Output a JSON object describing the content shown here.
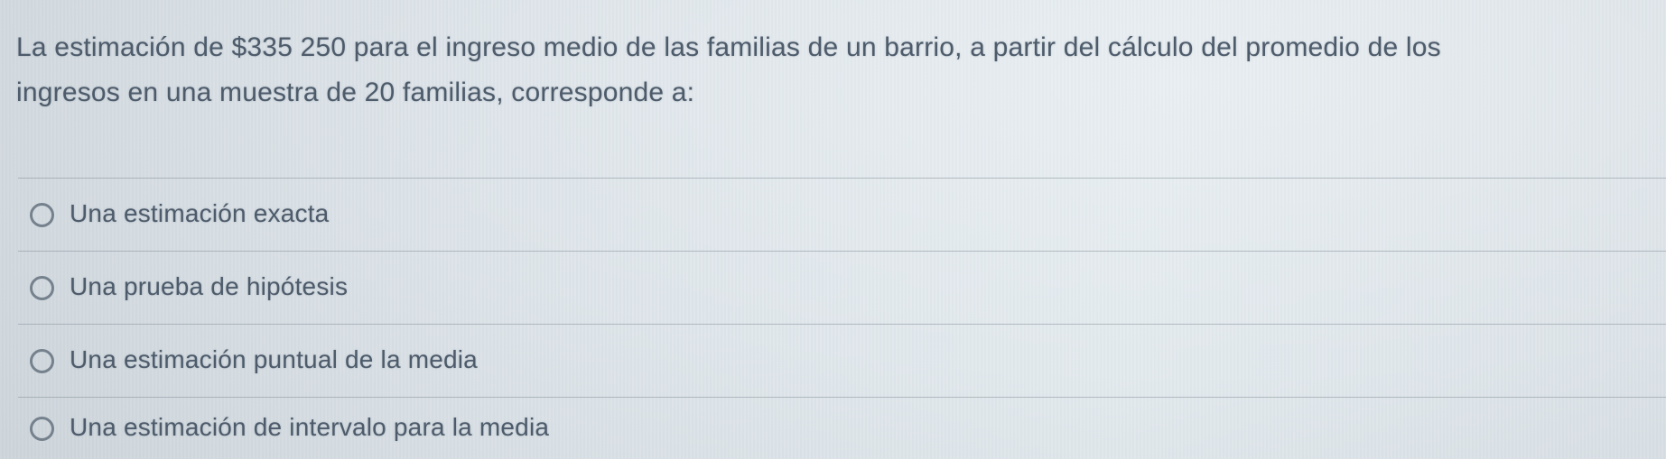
{
  "question": {
    "lines": [
      "La estimación de $335 250 para el ingreso medio de las familias de un barrio, a partir del cálculo del promedio de los",
      "ingresos en una muestra de 20 familias, corresponde a:"
    ]
  },
  "options": [
    {
      "label": "Una estimación exacta",
      "selected": false
    },
    {
      "label": "Una prueba de hipótesis",
      "selected": false
    },
    {
      "label": "Una estimación puntual de la media",
      "selected": false
    },
    {
      "label": "Una estimación de intervalo para la media",
      "selected": false
    }
  ],
  "colors": {
    "background": "#dde4e9",
    "text": "#4d5b6b",
    "divider": "#a6aeb6",
    "radio_border": "#75818d"
  }
}
